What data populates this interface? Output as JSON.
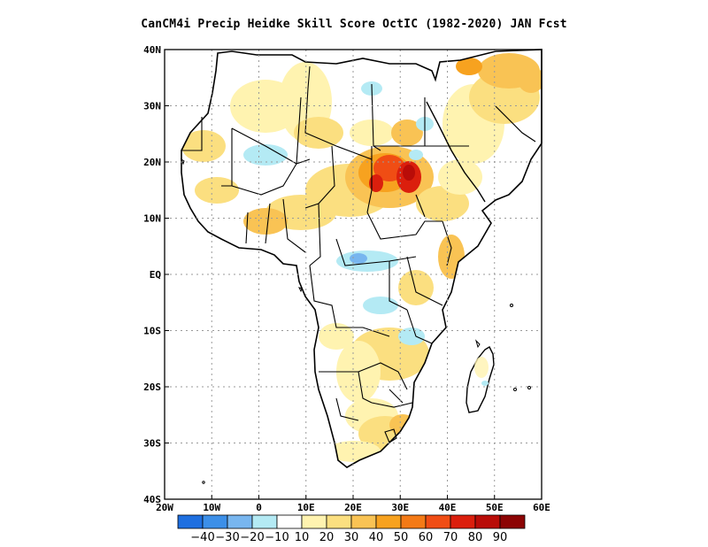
{
  "title": "CanCM4i Precip Heidke Skill Score OctIC (1982-2020) JAN Fcst",
  "map": {
    "lat_ticks": [
      "40N",
      "30N",
      "20N",
      "10N",
      "EQ",
      "10S",
      "20S",
      "30S",
      "40S"
    ],
    "lon_ticks": [
      "20W",
      "10W",
      "0",
      "10E",
      "20E",
      "30E",
      "40E",
      "50E",
      "60E"
    ],
    "lon_range": [
      -20,
      60
    ],
    "lat_range": [
      -40,
      40
    ],
    "grid": "dotted"
  },
  "colorbar": {
    "labels": [
      "-40",
      "-30",
      "-20",
      "-10",
      "10",
      "20",
      "30",
      "40",
      "50",
      "60",
      "70",
      "80",
      "90"
    ],
    "colors": [
      "#1e6fe0",
      "#3c8fe8",
      "#78b6ef",
      "#b4eaf4",
      "#ffffff",
      "#fff3b0",
      "#fbdf80",
      "#f9c354",
      "#f7a21f",
      "#f47a16",
      "#f04d14",
      "#db1f0d",
      "#b90c08",
      "#8c0404"
    ]
  }
}
